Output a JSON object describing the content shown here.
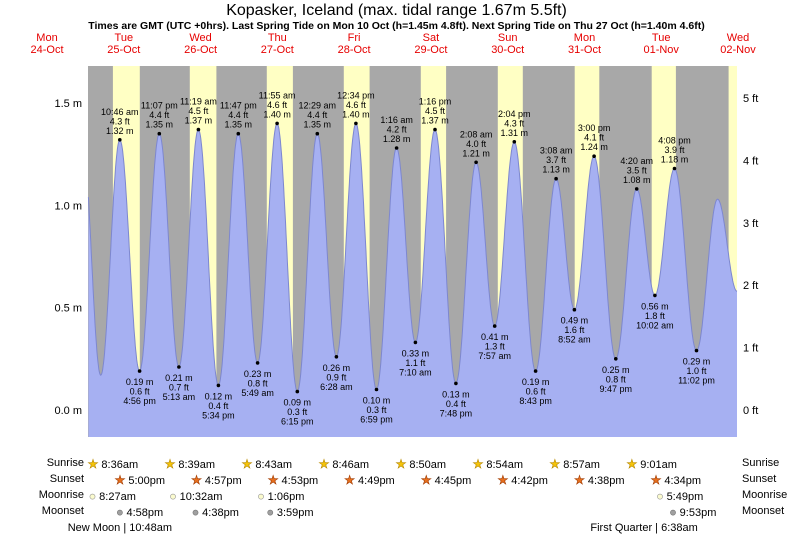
{
  "header": {
    "title": "Kopasker, Iceland (max. tidal range 1.67m 5.5ft)",
    "subtitle": "Times are GMT (UTC +0hrs). Last Spring Tide on Mon 10 Oct (h=1.45m 4.8ft). Next Spring Tide on Thu 27 Oct (h=1.40m 4.6ft)"
  },
  "chart_data": {
    "type": "area",
    "title": "Kopasker, Iceland (max. tidal range 1.67m 5.5ft)",
    "x_axis": {
      "unit": "days",
      "days": [
        {
          "weekday": "Mon",
          "date": "24-Oct"
        },
        {
          "weekday": "Tue",
          "date": "25-Oct"
        },
        {
          "weekday": "Wed",
          "date": "26-Oct"
        },
        {
          "weekday": "Thu",
          "date": "27-Oct"
        },
        {
          "weekday": "Fri",
          "date": "28-Oct"
        },
        {
          "weekday": "Sat",
          "date": "29-Oct"
        },
        {
          "weekday": "Sun",
          "date": "30-Oct"
        },
        {
          "weekday": "Mon",
          "date": "31-Oct"
        },
        {
          "weekday": "Tue",
          "date": "01-Nov"
        },
        {
          "weekday": "Wed",
          "date": "02-Nov"
        }
      ]
    },
    "y_axis_left": {
      "unit": "m",
      "ticks": [
        {
          "label": "1.5 m",
          "value": 1.5
        },
        {
          "label": "1.0 m",
          "value": 1.0
        },
        {
          "label": "0.5 m",
          "value": 0.5
        },
        {
          "label": "0.0 m",
          "value": 0.0
        }
      ]
    },
    "y_axis_right": {
      "unit": "ft",
      "ticks": [
        {
          "label": "5 ft",
          "value": 5
        },
        {
          "label": "4 ft",
          "value": 4
        },
        {
          "label": "3 ft",
          "value": 3
        },
        {
          "label": "2 ft",
          "value": 2
        },
        {
          "label": "1 ft",
          "value": 1
        },
        {
          "label": "0 ft",
          "value": 0
        }
      ]
    },
    "ylim_m": [
      -0.13,
      1.69
    ],
    "tide_extremes": [
      {
        "kind": "high",
        "day_index": 1,
        "time": "10:46 am",
        "ft": "4.3 ft",
        "m": "1.32 m",
        "value_m": 1.32
      },
      {
        "kind": "low",
        "day_index": 1,
        "time": "4:56 pm",
        "ft": "0.6 ft",
        "m": "0.19 m",
        "value_m": 0.19
      },
      {
        "kind": "high",
        "day_index": 1,
        "time": "11:07 pm",
        "ft": "4.4 ft",
        "m": "1.35 m",
        "value_m": 1.35
      },
      {
        "kind": "low",
        "day_index": 2,
        "time": "5:13 am",
        "ft": "0.7 ft",
        "m": "0.21 m",
        "value_m": 0.21
      },
      {
        "kind": "high",
        "day_index": 2,
        "time": "11:19 am",
        "ft": "4.5 ft",
        "m": "1.37 m",
        "value_m": 1.37
      },
      {
        "kind": "low",
        "day_index": 2,
        "time": "5:34 pm",
        "ft": "0.4 ft",
        "m": "0.12 m",
        "value_m": 0.12
      },
      {
        "kind": "high",
        "day_index": 2,
        "time": "11:47 pm",
        "ft": "4.4 ft",
        "m": "1.35 m",
        "value_m": 1.35
      },
      {
        "kind": "low",
        "day_index": 3,
        "time": "5:49 am",
        "ft": "0.8 ft",
        "m": "0.23 m",
        "value_m": 0.23
      },
      {
        "kind": "high",
        "day_index": 3,
        "time": "11:55 am",
        "ft": "4.6 ft",
        "m": "1.40 m",
        "value_m": 1.4
      },
      {
        "kind": "low",
        "day_index": 3,
        "time": "6:15 pm",
        "ft": "0.3 ft",
        "m": "0.09 m",
        "value_m": 0.09
      },
      {
        "kind": "high",
        "day_index": 4,
        "time": "12:29 am",
        "ft": "4.4 ft",
        "m": "1.35 m",
        "value_m": 1.35
      },
      {
        "kind": "low",
        "day_index": 4,
        "time": "6:28 am",
        "ft": "0.9 ft",
        "m": "0.26 m",
        "value_m": 0.26
      },
      {
        "kind": "high",
        "day_index": 4,
        "time": "12:34 pm",
        "ft": "4.6 ft",
        "m": "1.40 m",
        "value_m": 1.4
      },
      {
        "kind": "low",
        "day_index": 4,
        "time": "6:59 pm",
        "ft": "0.3 ft",
        "m": "0.10 m",
        "value_m": 0.1
      },
      {
        "kind": "high",
        "day_index": 5,
        "time": "1:16 am",
        "ft": "4.2 ft",
        "m": "1.28 m",
        "value_m": 1.28
      },
      {
        "kind": "low",
        "day_index": 5,
        "time": "7:10 am",
        "ft": "1.1 ft",
        "m": "0.33 m",
        "value_m": 0.33
      },
      {
        "kind": "high",
        "day_index": 5,
        "time": "1:16 pm",
        "ft": "4.5 ft",
        "m": "1.37 m",
        "value_m": 1.37
      },
      {
        "kind": "low",
        "day_index": 5,
        "time": "7:48 pm",
        "ft": "0.4 ft",
        "m": "0.13 m",
        "value_m": 0.13
      },
      {
        "kind": "high",
        "day_index": 6,
        "time": "2:08 am",
        "ft": "4.0 ft",
        "m": "1.21 m",
        "value_m": 1.21
      },
      {
        "kind": "low",
        "day_index": 6,
        "time": "7:57 am",
        "ft": "1.3 ft",
        "m": "0.41 m",
        "value_m": 0.41
      },
      {
        "kind": "high",
        "day_index": 6,
        "time": "2:04 pm",
        "ft": "4.3 ft",
        "m": "1.31 m",
        "value_m": 1.31
      },
      {
        "kind": "low",
        "day_index": 6,
        "time": "8:43 pm",
        "ft": "0.6 ft",
        "m": "0.19 m",
        "value_m": 0.19
      },
      {
        "kind": "high",
        "day_index": 7,
        "time": "3:08 am",
        "ft": "3.7 ft",
        "m": "1.13 m",
        "value_m": 1.13
      },
      {
        "kind": "low",
        "day_index": 7,
        "time": "8:52 am",
        "ft": "1.6 ft",
        "m": "0.49 m",
        "value_m": 0.49
      },
      {
        "kind": "high",
        "day_index": 7,
        "time": "3:00 pm",
        "ft": "4.1 ft",
        "m": "1.24 m",
        "value_m": 1.24
      },
      {
        "kind": "low",
        "day_index": 7,
        "time": "9:47 pm",
        "ft": "0.8 ft",
        "m": "0.25 m",
        "value_m": 0.25
      },
      {
        "kind": "high",
        "day_index": 8,
        "time": "4:20 am",
        "ft": "3.5 ft",
        "m": "1.08 m",
        "value_m": 1.08
      },
      {
        "kind": "low",
        "day_index": 8,
        "time": "10:02 am",
        "ft": "1.8 ft",
        "m": "0.56 m",
        "value_m": 0.56
      },
      {
        "kind": "high",
        "day_index": 8,
        "time": "4:08 pm",
        "ft": "3.9 ft",
        "m": "1.18 m",
        "value_m": 1.18
      },
      {
        "kind": "low",
        "day_index": 8,
        "time": "11:02 pm",
        "ft": "1.0 ft",
        "m": "0.29 m",
        "value_m": 0.29
      }
    ]
  },
  "astro": {
    "row_labels": [
      "Sunrise",
      "Sunset",
      "Moonrise",
      "Moonset"
    ],
    "sunrise": [
      {
        "day_index": 1,
        "time": "8:36am"
      },
      {
        "day_index": 2,
        "time": "8:39am"
      },
      {
        "day_index": 3,
        "time": "8:43am"
      },
      {
        "day_index": 4,
        "time": "8:46am"
      },
      {
        "day_index": 5,
        "time": "8:50am"
      },
      {
        "day_index": 6,
        "time": "8:54am"
      },
      {
        "day_index": 7,
        "time": "8:57am"
      },
      {
        "day_index": 8,
        "time": "9:01am"
      }
    ],
    "sunset": [
      {
        "day_index": 1,
        "time": "5:00pm"
      },
      {
        "day_index": 2,
        "time": "4:57pm"
      },
      {
        "day_index": 3,
        "time": "4:53pm"
      },
      {
        "day_index": 4,
        "time": "4:49pm"
      },
      {
        "day_index": 5,
        "time": "4:45pm"
      },
      {
        "day_index": 6,
        "time": "4:42pm"
      },
      {
        "day_index": 7,
        "time": "4:38pm"
      },
      {
        "day_index": 8,
        "time": "4:34pm"
      }
    ],
    "moonrise": [
      {
        "day_index": 1,
        "time": "8:27am"
      },
      {
        "day_index": 2,
        "time": "10:32am"
      },
      {
        "day_index": 3,
        "time": "1:06pm"
      },
      {
        "day_index": 8,
        "time": "5:49pm"
      }
    ],
    "moonset": [
      {
        "day_index": 1,
        "time": "4:58pm"
      },
      {
        "day_index": 2,
        "time": "4:38pm"
      },
      {
        "day_index": 3,
        "time": "3:59pm"
      },
      {
        "day_index": 8,
        "time": "9:53pm"
      }
    ],
    "moon_phases": [
      {
        "day_index": 1,
        "label": "New Moon",
        "time": "10:48am"
      },
      {
        "day_index": 8,
        "label": "First Quarter",
        "time": "6:38am"
      }
    ]
  },
  "colors": {
    "plot_bg": "#a8a8a8",
    "daylight_band": "#ffffc4",
    "tide_fill": "#a6b0f2",
    "tide_stroke": "#7d87cf",
    "date_red": "#e60000",
    "annotation_text": "#000000",
    "sunrise_star": "#f5c40a",
    "sunset_star": "#e8701e",
    "moonrise_disc": "#fbfbce",
    "moonset_disc": "#a0a0a0"
  }
}
